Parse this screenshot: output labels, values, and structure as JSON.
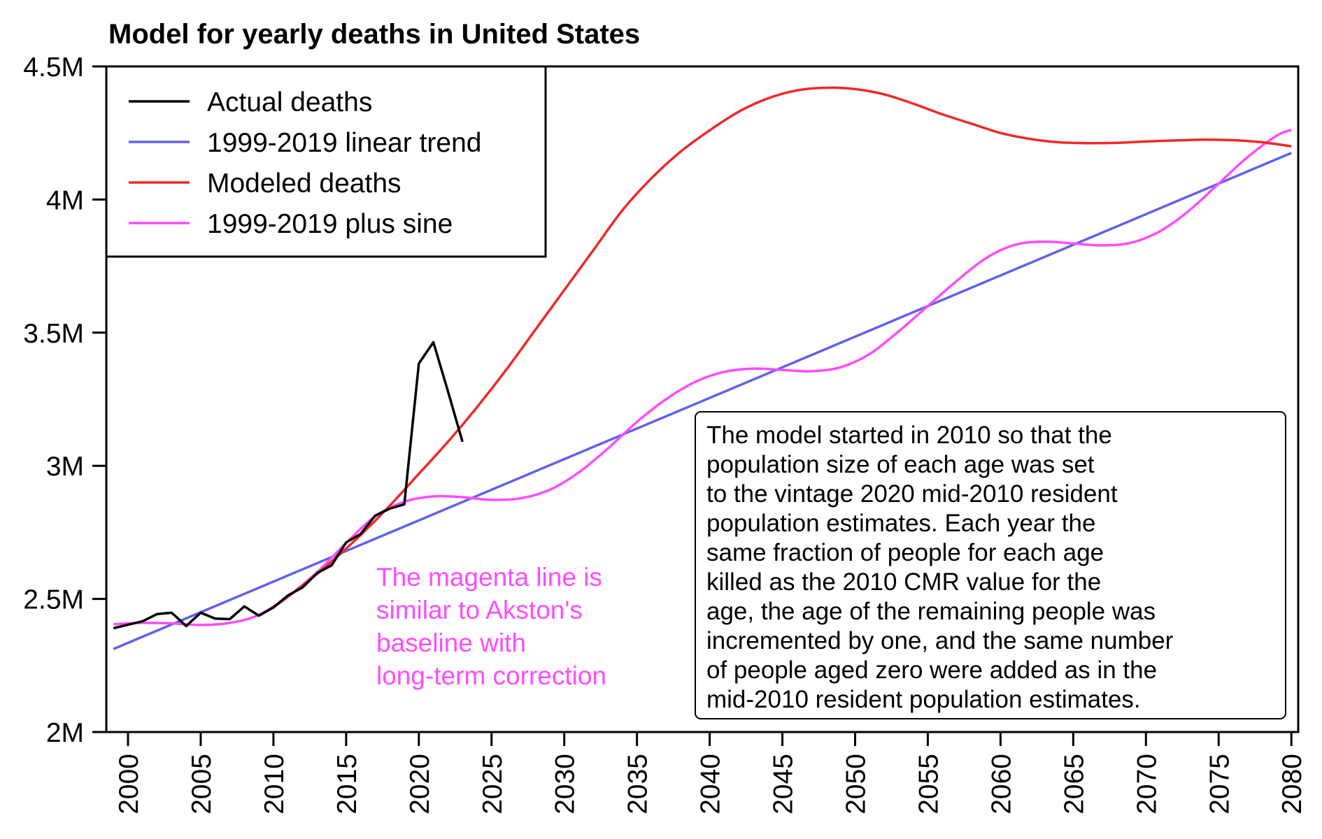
{
  "chart_data": {
    "type": "line",
    "title": "Model for yearly deaths in United States",
    "xlabel": "",
    "ylabel": "",
    "xlim": [
      1998.5,
      2080.5
    ],
    "ylim": [
      2000000,
      4500000
    ],
    "grid": false,
    "legend_position": "top-left",
    "x_ticks": [
      2000,
      2005,
      2010,
      2015,
      2020,
      2025,
      2030,
      2035,
      2040,
      2045,
      2050,
      2055,
      2060,
      2065,
      2070,
      2075,
      2080
    ],
    "x_tick_labels": [
      "2000",
      "2005",
      "2010",
      "2015",
      "2020",
      "2025",
      "2030",
      "2035",
      "2040",
      "2045",
      "2050",
      "2055",
      "2060",
      "2065",
      "2070",
      "2075",
      "2080"
    ],
    "y_ticks": [
      2000000,
      2500000,
      3000000,
      3500000,
      4000000,
      4500000
    ],
    "y_tick_labels": [
      "2M",
      "2.5M",
      "3M",
      "3.5M",
      "4M",
      "4.5M"
    ],
    "series": [
      {
        "name": "Actual deaths",
        "color": "#000000",
        "x": [
          1999,
          2000,
          2001,
          2002,
          2003,
          2004,
          2005,
          2006,
          2007,
          2008,
          2009,
          2010,
          2011,
          2012,
          2013,
          2014,
          2015,
          2016,
          2017,
          2018,
          2019,
          2020,
          2021,
          2022,
          2023
        ],
        "values": [
          2390000,
          2403000,
          2416000,
          2443000,
          2448000,
          2398000,
          2448000,
          2426000,
          2424000,
          2472000,
          2437000,
          2468000,
          2513000,
          2543000,
          2597000,
          2626000,
          2712000,
          2744000,
          2813000,
          2839000,
          2855000,
          3384000,
          3464000,
          3280000,
          3090000
        ]
      },
      {
        "name": "1999-2019 linear trend",
        "color": "#6060f0",
        "x": [
          1999,
          2080
        ],
        "values": [
          2312000,
          4175000
        ]
      },
      {
        "name": "Modeled deaths",
        "color": "#f02828",
        "x": [
          2010,
          2012,
          2014,
          2016,
          2018,
          2020,
          2022,
          2024,
          2026,
          2028,
          2030,
          2032,
          2034,
          2036,
          2038,
          2040,
          2042,
          2044,
          2046,
          2048,
          2050,
          2052,
          2054,
          2056,
          2058,
          2060,
          2062,
          2064,
          2066,
          2068,
          2070,
          2072,
          2074,
          2076,
          2078,
          2080
        ],
        "values": [
          2468000,
          2550000,
          2640000,
          2740000,
          2850000,
          2970000,
          3090000,
          3220000,
          3360000,
          3510000,
          3660000,
          3810000,
          3960000,
          4080000,
          4180000,
          4260000,
          4330000,
          4380000,
          4410000,
          4420000,
          4415000,
          4395000,
          4360000,
          4320000,
          4285000,
          4250000,
          4228000,
          4215000,
          4212000,
          4213000,
          4218000,
          4222000,
          4225000,
          4223000,
          4215000,
          4200000
        ]
      },
      {
        "name": "1999-2019 plus sine",
        "color": "#ff4cff",
        "x": [
          1999,
          2001,
          2003,
          2005,
          2007,
          2009,
          2011,
          2013,
          2015,
          2017,
          2019,
          2021,
          2023,
          2025,
          2027,
          2029,
          2031,
          2033,
          2035,
          2037,
          2039,
          2041,
          2043,
          2045,
          2047,
          2049,
          2051,
          2053,
          2055,
          2057,
          2059,
          2061,
          2063,
          2065,
          2067,
          2069,
          2071,
          2073,
          2075,
          2077,
          2079,
          2080
        ],
        "values": [
          2405000,
          2410000,
          2408000,
          2402000,
          2410000,
          2440000,
          2510000,
          2600000,
          2710000,
          2810000,
          2865000,
          2885000,
          2882000,
          2872000,
          2878000,
          2910000,
          2975000,
          3065000,
          3165000,
          3250000,
          3315000,
          3353000,
          3365000,
          3360000,
          3355000,
          3370000,
          3420000,
          3505000,
          3600000,
          3695000,
          3780000,
          3830000,
          3842000,
          3835000,
          3828000,
          3838000,
          3882000,
          3960000,
          4060000,
          4160000,
          4240000,
          4262000
        ]
      }
    ],
    "annotations": [
      {
        "text_lines": [
          "The magenta line is",
          "similar to Akston's",
          "baseline with",
          "long-term correction"
        ],
        "color": "#ff4cff",
        "boxed": false
      },
      {
        "text_lines": [
          "The model started in 2010 so that the",
          "population size of each age was set",
          "to the vintage 2020 mid-2010 resident",
          "population estimates. Each year the",
          "same fraction of people for each age",
          "killed as the 2010 CMR value for the",
          "age, the age of the remaining people was",
          "incremented by one, and the same number",
          "of people aged zero were added as in the",
          "mid-2010 resident population estimates."
        ],
        "color": "#000000",
        "boxed": true
      }
    ]
  }
}
